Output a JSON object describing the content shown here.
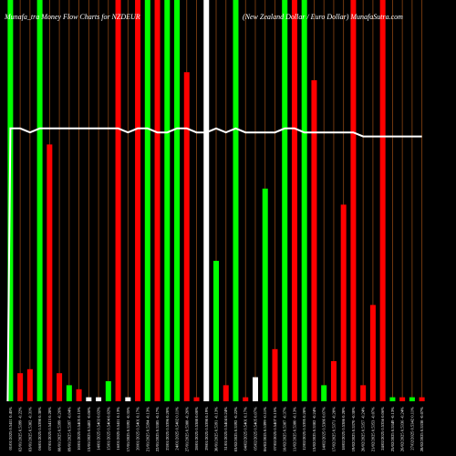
{
  "chart_data": {
    "type": "bar",
    "title_left": "Munafa_tra  Money Flow  Charts for NZDEUR",
    "title_right": "(New Zealand Dollar / Euro Dollar) MunafaSutra.com",
    "colors": {
      "background": "#000000",
      "up": "#00ff00",
      "down": "#ff0000",
      "neutral": "#ffffff",
      "grid": "#8b4513",
      "line": "#ffffff"
    },
    "ylim": [
      0,
      100
    ],
    "line_ylim": [
      0,
      100
    ],
    "categories": [
      "01/01/2025 0.5411 0.45%",
      "02/01/2025 0.5399 -0.22%",
      "03/01/2025 0.5382 -0.31%",
      "06/01/2025 0.5398 0.30%",
      "07/01/2025 0.5413 0.28%",
      "08/01/2025 0.5399 -0.26%",
      "09/01/2025 0.5397 -0.04%",
      "10/01/2025 0.5405 0.15%",
      "13/01/2025 0.5402 -0.06%",
      "14/01/2025 0.5403 0.02%",
      "15/01/2025 0.5404 0.02%",
      "16/01/2025 0.5411 0.13%",
      "17/01/2025 0.5392 -0.35%",
      "20/01/2025 0.5401 0.17%",
      "21/01/2025 0.5394 -0.13%",
      "22/01/2025 0.5385 -0.17%",
      "23/01/2025 0.5396 0.20%",
      "24/01/2025 0.5402 0.11%",
      "27/01/2025 0.5388 -0.26%",
      "28/01/2025 0.5388 0.00%",
      "29/01/2025 0.5398 0.19%",
      "30/01/2025 0.5391 -0.13%",
      "31/01/2025 0.5404 0.24%",
      "03/02/2025 0.5392 -0.22%",
      "04/02/2025 0.5401 0.17%",
      "05/02/2025 0.5405 0.07%",
      "06/02/2025 0.5399 -0.11%",
      "07/02/2025 0.5407 0.15%",
      "10/02/2025 0.5387 -0.37%",
      "11/02/2025 0.5380 -0.13%",
      "12/02/2025 0.5395 0.28%",
      "13/02/2025 0.5382 -0.24%",
      "14/02/2025 0.5386 0.07%",
      "17/02/2025 0.5371 -0.28%",
      "18/02/2025 0.5386 0.28%",
      "19/02/2025 0.5370 -0.30%",
      "20/02/2025 0.5357 -0.24%",
      "21/02/2025 0.5353 -0.07%",
      "24/02/2025 0.5356 0.06%",
      "25/02/2025 0.5349 -0.13%",
      "26/02/2025 0.5336 -0.24%",
      "27/02/2025 0.5342 0.11%",
      "28/02/2025 0.5338 -0.07%"
    ],
    "bar_colors": [
      "up",
      "down",
      "down",
      "up",
      "down",
      "down",
      "up",
      "down",
      "neutral",
      "neutral",
      "up",
      "down",
      "neutral",
      "down",
      "up",
      "down",
      "up",
      "up",
      "down",
      "down",
      "neutral",
      "up",
      "down",
      "up",
      "down",
      "neutral",
      "up",
      "down",
      "up",
      "down",
      "up",
      "down",
      "up",
      "down",
      "down",
      "down",
      "down",
      "down",
      "down",
      "up",
      "down",
      "up",
      "down"
    ],
    "values": [
      100,
      7,
      8,
      100,
      64,
      7,
      4,
      3,
      1,
      1,
      5,
      100,
      1,
      100,
      100,
      100,
      100,
      100,
      82,
      1,
      100,
      35,
      4,
      100,
      1,
      6,
      53,
      13,
      100,
      100,
      100,
      80,
      4,
      10,
      49,
      100,
      4,
      24,
      100,
      1,
      1,
      1,
      1
    ],
    "line_values": [
      68,
      68,
      67,
      68,
      68,
      68,
      68,
      68,
      68,
      68,
      68,
      68,
      67,
      68,
      68,
      67,
      67,
      68,
      68,
      67,
      67,
      68,
      67,
      68,
      67,
      67,
      67,
      67,
      68,
      68,
      67,
      67,
      67,
      67,
      67,
      67,
      66,
      66,
      66,
      66,
      66,
      66,
      66
    ],
    "grid": true,
    "legend": "none"
  }
}
